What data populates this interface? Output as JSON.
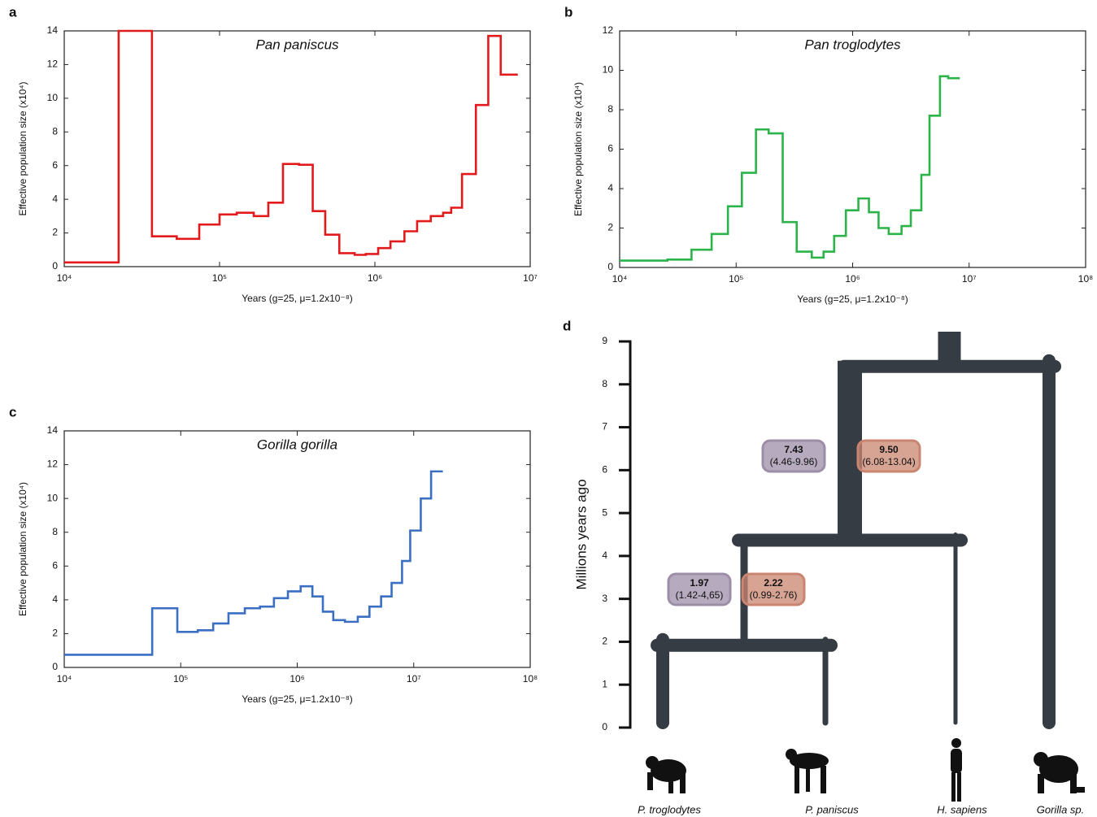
{
  "chart_data": [
    {
      "type": "step",
      "panel": "a",
      "title": "Pan paniscus",
      "xlabel": "Years (g=25, μ=1.2x10⁻⁸)",
      "ylabel": "Effective population size (x10⁴)",
      "log_x": true,
      "xlim": [
        10000,
        10000000
      ],
      "xticks": [
        {
          "value": 10000,
          "label": "10⁴"
        },
        {
          "value": 100000,
          "label": "10⁵"
        },
        {
          "value": 1000000,
          "label": "10⁶"
        },
        {
          "value": 10000000,
          "label": "10⁷"
        }
      ],
      "ylim": [
        0,
        14
      ],
      "yticks": [
        0,
        2,
        4,
        6,
        8,
        10,
        12,
        14
      ],
      "series": [
        {
          "color": "#e31a1c",
          "x": [
            10000,
            22400,
            36700,
            53000,
            74000,
            100000,
            129000,
            166000,
            206000,
            256000,
            325000,
            398000,
            479000,
            590000,
            741000,
            875000,
            1050000,
            1260000,
            1550000,
            1870000,
            2290000,
            2750000,
            3100000,
            3640000,
            4470000,
            5370000,
            6460000,
            8320000
          ],
          "values": [
            0.25,
            14,
            1.8,
            1.65,
            2.5,
            3.1,
            3.2,
            3.0,
            3.8,
            6.1,
            6.05,
            3.3,
            1.9,
            0.8,
            0.7,
            0.75,
            1.1,
            1.5,
            2.1,
            2.7,
            3.0,
            3.2,
            3.5,
            5.5,
            9.6,
            13.7,
            11.4,
            11.4
          ]
        }
      ]
    },
    {
      "type": "step",
      "panel": "b",
      "title": "Pan troglodytes",
      "xlabel": "Years (g=25, μ=1.2x10⁻⁸)",
      "ylabel": "Effective population size (x10⁴)",
      "log_x": true,
      "xlim": [
        10000,
        100000000
      ],
      "xticks": [
        {
          "value": 10000,
          "label": "10⁴"
        },
        {
          "value": 100000,
          "label": "10⁵"
        },
        {
          "value": 1000000,
          "label": "10⁶"
        },
        {
          "value": 10000000,
          "label": "10⁷"
        },
        {
          "value": 100000000,
          "label": "10⁸"
        }
      ],
      "ylim": [
        0,
        12
      ],
      "yticks": [
        0,
        2,
        4,
        6,
        8,
        10,
        12
      ],
      "series": [
        {
          "color": "#2cb34a",
          "x": [
            10000,
            25700,
            41400,
            61600,
            85000,
            112000,
            148000,
            190000,
            251000,
            331000,
            446000,
            563000,
            694000,
            875000,
            1120000,
            1380000,
            1670000,
            2040000,
            2630000,
            3160000,
            3890000,
            4570000,
            5620000,
            6610000,
            8320000
          ],
          "values": [
            0.35,
            0.4,
            0.9,
            1.7,
            3.1,
            4.8,
            7.0,
            6.8,
            2.3,
            0.8,
            0.5,
            0.8,
            1.6,
            2.9,
            3.5,
            2.8,
            2.0,
            1.7,
            2.1,
            2.9,
            4.7,
            7.7,
            9.7,
            9.6,
            9.6
          ]
        }
      ]
    },
    {
      "type": "step",
      "panel": "c",
      "title": "Gorilla gorilla",
      "xlabel": "Years (g=25, μ=1.2x10⁻⁸)",
      "ylabel": "Effective population size (x10⁴)",
      "log_x": true,
      "xlim": [
        10000,
        100000000
      ],
      "xticks": [
        {
          "value": 10000,
          "label": "10⁴"
        },
        {
          "value": 100000,
          "label": "10⁵"
        },
        {
          "value": 1000000,
          "label": "10⁶"
        },
        {
          "value": 10000000,
          "label": "10⁷"
        },
        {
          "value": 100000000,
          "label": "10⁸"
        }
      ],
      "ylim": [
        0,
        14
      ],
      "yticks": [
        0,
        2,
        4,
        6,
        8,
        10,
        12,
        14
      ],
      "series": [
        {
          "color": "#3a6fc4",
          "x": [
            10000,
            56900,
            93500,
            140000,
            190000,
            257000,
            355000,
            479000,
            631000,
            832000,
            1070000,
            1350000,
            1660000,
            2040000,
            2570000,
            3310000,
            4170000,
            5250000,
            6460000,
            7940000,
            9330000,
            11500000,
            14100000,
            17800000
          ],
          "values": [
            0.75,
            3.5,
            2.1,
            2.2,
            2.6,
            3.2,
            3.5,
            3.6,
            4.1,
            4.5,
            4.8,
            4.2,
            3.3,
            2.8,
            2.7,
            3.0,
            3.6,
            4.2,
            5.0,
            6.3,
            8.1,
            10.0,
            11.6,
            11.6
          ]
        }
      ]
    },
    {
      "type": "tree",
      "panel": "d",
      "ylabel": "Millions years ago",
      "ylim": [
        0,
        9
      ],
      "yticks": [
        0,
        1,
        2,
        3,
        4,
        5,
        6,
        7,
        8,
        9
      ],
      "color": "#353c44",
      "leaves": [
        "P. troglodytes",
        "P. paniscus",
        "H. sapiens",
        "Gorilla sp."
      ],
      "node_heights": [
        2.05,
        4.5,
        8.55
      ],
      "annotations": [
        {
          "estimate": 7.43,
          "interval": "(4.46-9.96)",
          "color": "#9d8ea8"
        },
        {
          "estimate": {
            "value": 9.5,
            "label": "9.50"
          },
          "interval": "(6.08-13.04)",
          "color": "#c98570"
        },
        {
          "estimate": 1.97,
          "interval": "(1.42-4,65)",
          "color": "#9d8ea8"
        },
        {
          "estimate": 2.22,
          "interval": "(0.99-2.76)",
          "color": "#c98570"
        }
      ]
    }
  ]
}
